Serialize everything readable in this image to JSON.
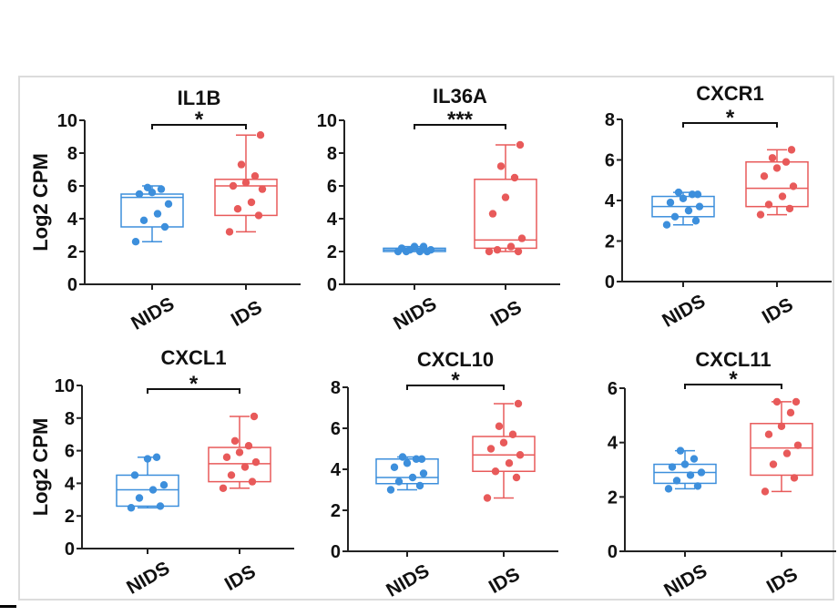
{
  "figure": {
    "ylabel": "Log2 CPM"
  },
  "chart_data": [
    {
      "type": "box",
      "title": "IL1B",
      "ylabel": "Log2 CPM",
      "groups": [
        "NIDS",
        "IDS"
      ],
      "yticks": [
        0,
        2,
        4,
        6,
        8,
        10
      ],
      "ylim": [
        0,
        10
      ],
      "significance": "*",
      "colors": [
        "#3d8fdc",
        "#e85a5a"
      ],
      "boxes": [
        {
          "name": "NIDS",
          "min": 2.6,
          "q1": 3.5,
          "median": 5.3,
          "q3": 5.5,
          "max": 6.0,
          "points": [
            2.6,
            3.5,
            3.9,
            4.3,
            4.9,
            5.5,
            5.6,
            5.8,
            5.9
          ]
        },
        {
          "name": "IDS",
          "min": 3.2,
          "q1": 4.2,
          "median": 6.0,
          "q3": 6.4,
          "max": 9.1,
          "points": [
            3.2,
            4.2,
            4.6,
            5.0,
            5.8,
            6.0,
            6.2,
            6.6,
            7.3,
            9.1
          ]
        }
      ]
    },
    {
      "type": "box",
      "title": "IL36A",
      "ylabel": "",
      "groups": [
        "NIDS",
        "IDS"
      ],
      "yticks": [
        0,
        2,
        4,
        6,
        8,
        10
      ],
      "ylim": [
        0,
        10
      ],
      "significance": "***",
      "colors": [
        "#3d8fdc",
        "#e85a5a"
      ],
      "boxes": [
        {
          "name": "NIDS",
          "min": 2.0,
          "q1": 2.0,
          "median": 2.1,
          "q3": 2.2,
          "max": 2.3,
          "points": [
            2.0,
            2.0,
            2.0,
            2.0,
            2.1,
            2.2,
            2.3,
            2.3,
            2.1
          ]
        },
        {
          "name": "IDS",
          "min": 2.0,
          "q1": 2.2,
          "median": 2.7,
          "q3": 6.4,
          "max": 8.5,
          "points": [
            2.0,
            2.0,
            2.1,
            2.3,
            2.8,
            4.3,
            5.3,
            6.5,
            7.2,
            8.5
          ]
        }
      ]
    },
    {
      "type": "box",
      "title": "CXCR1",
      "ylabel": "",
      "groups": [
        "NIDS",
        "IDS"
      ],
      "yticks": [
        0,
        2,
        4,
        6,
        8
      ],
      "ylim": [
        0,
        8
      ],
      "significance": "*",
      "colors": [
        "#3d8fdc",
        "#e85a5a"
      ],
      "boxes": [
        {
          "name": "NIDS",
          "min": 2.8,
          "q1": 3.2,
          "median": 3.7,
          "q3": 4.2,
          "max": 4.4,
          "points": [
            2.8,
            3.0,
            3.2,
            3.5,
            3.7,
            3.9,
            4.1,
            4.3,
            4.4,
            4.3
          ]
        },
        {
          "name": "IDS",
          "min": 3.3,
          "q1": 3.7,
          "median": 4.6,
          "q3": 5.9,
          "max": 6.5,
          "points": [
            3.3,
            3.6,
            3.8,
            4.2,
            4.7,
            5.2,
            5.6,
            5.9,
            6.1,
            6.5
          ]
        }
      ]
    },
    {
      "type": "box",
      "title": "CXCL1",
      "ylabel": "Log2 CPM",
      "groups": [
        "NIDS",
        "IDS"
      ],
      "yticks": [
        0,
        2,
        4,
        6,
        8,
        10
      ],
      "ylim": [
        0,
        10
      ],
      "significance": "*",
      "colors": [
        "#3d8fdc",
        "#e85a5a"
      ],
      "boxes": [
        {
          "name": "NIDS",
          "min": 2.5,
          "q1": 2.6,
          "median": 3.6,
          "q3": 4.5,
          "max": 5.6,
          "points": [
            2.5,
            2.6,
            3.1,
            3.6,
            3.9,
            4.5,
            5.5,
            5.6
          ]
        },
        {
          "name": "IDS",
          "min": 3.7,
          "q1": 4.1,
          "median": 5.2,
          "q3": 6.2,
          "max": 8.1,
          "points": [
            3.7,
            4.1,
            4.5,
            5.0,
            5.3,
            5.6,
            5.9,
            6.3,
            6.6,
            8.1
          ]
        }
      ]
    },
    {
      "type": "box",
      "title": "CXCL10",
      "ylabel": "",
      "groups": [
        "NIDS",
        "IDS"
      ],
      "yticks": [
        0,
        2,
        4,
        6,
        8
      ],
      "ylim": [
        0,
        8
      ],
      "significance": "*",
      "colors": [
        "#3d8fdc",
        "#e85a5a"
      ],
      "boxes": [
        {
          "name": "NIDS",
          "min": 3.0,
          "q1": 3.3,
          "median": 3.6,
          "q3": 4.5,
          "max": 4.6,
          "points": [
            3.0,
            3.2,
            3.4,
            3.6,
            3.8,
            4.1,
            4.3,
            4.5,
            4.6,
            4.5
          ]
        },
        {
          "name": "IDS",
          "min": 2.6,
          "q1": 3.9,
          "median": 4.7,
          "q3": 5.6,
          "max": 7.2,
          "points": [
            2.6,
            3.6,
            3.9,
            4.3,
            4.7,
            5.0,
            5.3,
            5.7,
            6.1,
            7.2
          ]
        }
      ]
    },
    {
      "type": "box",
      "title": "CXCL11",
      "ylabel": "",
      "groups": [
        "NIDS",
        "IDS"
      ],
      "yticks": [
        0,
        2,
        4,
        6
      ],
      "ylim": [
        0,
        6
      ],
      "significance": "*",
      "colors": [
        "#3d8fdc",
        "#e85a5a"
      ],
      "boxes": [
        {
          "name": "NIDS",
          "min": 2.3,
          "q1": 2.5,
          "median": 2.9,
          "q3": 3.2,
          "max": 3.7,
          "points": [
            2.3,
            2.4,
            2.6,
            2.8,
            2.9,
            3.1,
            3.2,
            3.4,
            3.7
          ]
        },
        {
          "name": "IDS",
          "min": 2.2,
          "q1": 2.8,
          "median": 3.8,
          "q3": 4.7,
          "max": 5.5,
          "points": [
            2.2,
            2.7,
            3.2,
            3.6,
            3.9,
            4.3,
            4.6,
            5.1,
            5.5,
            5.5
          ]
        }
      ]
    }
  ]
}
